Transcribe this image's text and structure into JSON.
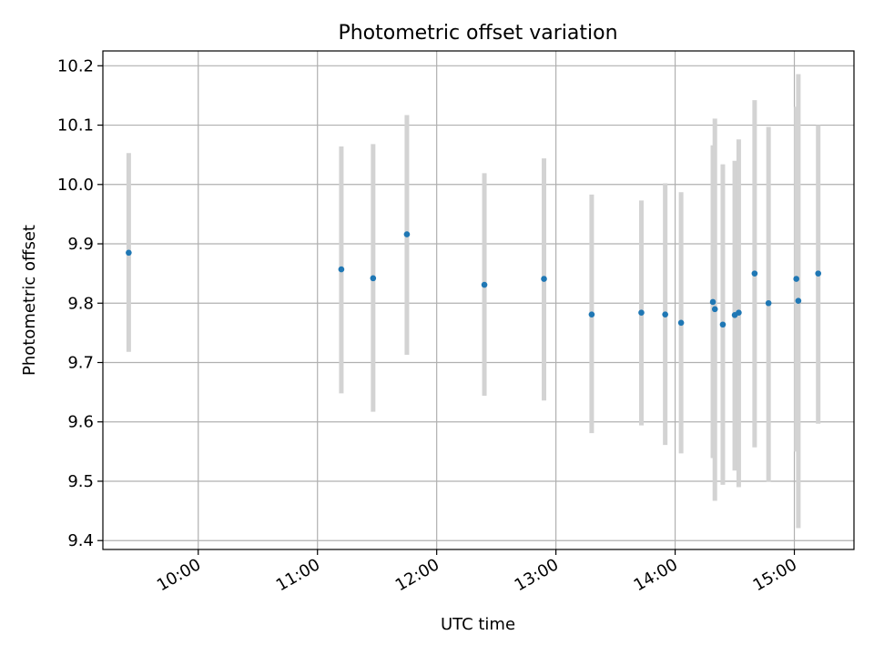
{
  "chart_data": {
    "type": "scatter",
    "title": "Photometric offset variation",
    "xlabel": "UTC time",
    "ylabel": "Photometric offset",
    "x_axis_type": "time",
    "xlim": [
      "09:12",
      "15:30"
    ],
    "ylim": [
      9.385,
      10.225
    ],
    "grid": true,
    "x_ticks": [
      {
        "time": "10:00",
        "label": "10:00"
      },
      {
        "time": "11:00",
        "label": "11:00"
      },
      {
        "time": "12:00",
        "label": "12:00"
      },
      {
        "time": "13:00",
        "label": "13:00"
      },
      {
        "time": "14:00",
        "label": "14:00"
      },
      {
        "time": "15:00",
        "label": "15:00"
      }
    ],
    "y_ticks": [
      9.4,
      9.5,
      9.6,
      9.7,
      9.8,
      9.9,
      10.0,
      10.1,
      10.2
    ],
    "y_tick_labels": [
      "9.4",
      "9.5",
      "9.6",
      "9.7",
      "9.8",
      "9.9",
      "10.0",
      "10.1",
      "10.2"
    ],
    "colors": {
      "marker": "#1f77b4",
      "errorbar": "#d3d3d3",
      "grid": "#b0b0b0"
    },
    "points": [
      {
        "x": "09:25",
        "y": 9.885,
        "err_low": 9.718,
        "err_high": 10.053
      },
      {
        "x": "11:12",
        "y": 9.857,
        "err_low": 9.648,
        "err_high": 10.064
      },
      {
        "x": "11:28",
        "y": 9.842,
        "err_low": 9.617,
        "err_high": 10.068
      },
      {
        "x": "11:45",
        "y": 9.916,
        "err_low": 9.713,
        "err_high": 10.117
      },
      {
        "x": "12:24",
        "y": 9.831,
        "err_low": 9.644,
        "err_high": 10.019
      },
      {
        "x": "12:54",
        "y": 9.841,
        "err_low": 9.636,
        "err_high": 10.044
      },
      {
        "x": "13:18",
        "y": 9.781,
        "err_low": 9.581,
        "err_high": 9.983
      },
      {
        "x": "13:43",
        "y": 9.784,
        "err_low": 9.594,
        "err_high": 9.973
      },
      {
        "x": "13:55",
        "y": 9.781,
        "err_low": 9.561,
        "err_high": 10.002
      },
      {
        "x": "14:03",
        "y": 9.767,
        "err_low": 9.547,
        "err_high": 9.987
      },
      {
        "x": "14:19",
        "y": 9.802,
        "err_low": 9.539,
        "err_high": 10.066
      },
      {
        "x": "14:20",
        "y": 9.79,
        "err_low": 9.467,
        "err_high": 10.111
      },
      {
        "x": "14:24",
        "y": 9.764,
        "err_low": 9.494,
        "err_high": 10.034
      },
      {
        "x": "14:30",
        "y": 9.78,
        "err_low": 9.518,
        "err_high": 10.04
      },
      {
        "x": "14:32",
        "y": 9.784,
        "err_low": 9.49,
        "err_high": 10.076
      },
      {
        "x": "14:40",
        "y": 9.85,
        "err_low": 9.557,
        "err_high": 10.142
      },
      {
        "x": "14:47",
        "y": 9.8,
        "err_low": 9.499,
        "err_high": 10.097
      },
      {
        "x": "15:01",
        "y": 9.841,
        "err_low": 9.55,
        "err_high": 10.131
      },
      {
        "x": "15:02",
        "y": 9.804,
        "err_low": 9.421,
        "err_high": 10.186
      },
      {
        "x": "15:12",
        "y": 9.85,
        "err_low": 9.597,
        "err_high": 10.1
      }
    ]
  }
}
